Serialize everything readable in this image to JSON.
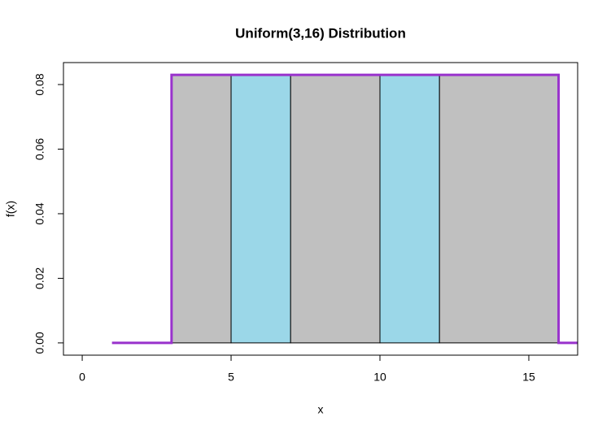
{
  "chart_data": {
    "type": "histogram",
    "title": "Uniform(3,16) Distribution",
    "x_label": "x",
    "y_label": "f(x)",
    "bins": [
      3,
      5,
      7,
      10,
      12,
      16
    ],
    "values": [
      0.083,
      0.083,
      0.083,
      0.083,
      0.083
    ],
    "colors": [
      "#c0c0c0",
      "#9bd7e8",
      "#c0c0c0",
      "#9bd7e8",
      "#c0c0c0"
    ],
    "series": [
      {
        "color": "#9932cc",
        "x": [
          1,
          3,
          3,
          16,
          16,
          16.64
        ],
        "values": [
          0,
          0,
          0.083,
          0.083,
          0,
          0
        ]
      }
    ],
    "xlim": [
      -0.63,
      16.64
    ],
    "ylim": [
      -0.0038,
      0.0868
    ],
    "xticks": [
      0,
      5,
      10,
      15
    ],
    "yticks": [
      {
        "value": 0,
        "label": "0.00"
      },
      {
        "value": 0.02,
        "label": "0.02"
      },
      {
        "value": 0.04,
        "label": "0.04"
      },
      {
        "value": 0.06,
        "label": "0.06"
      },
      {
        "value": 0.08,
        "label": "0.08"
      }
    ]
  }
}
